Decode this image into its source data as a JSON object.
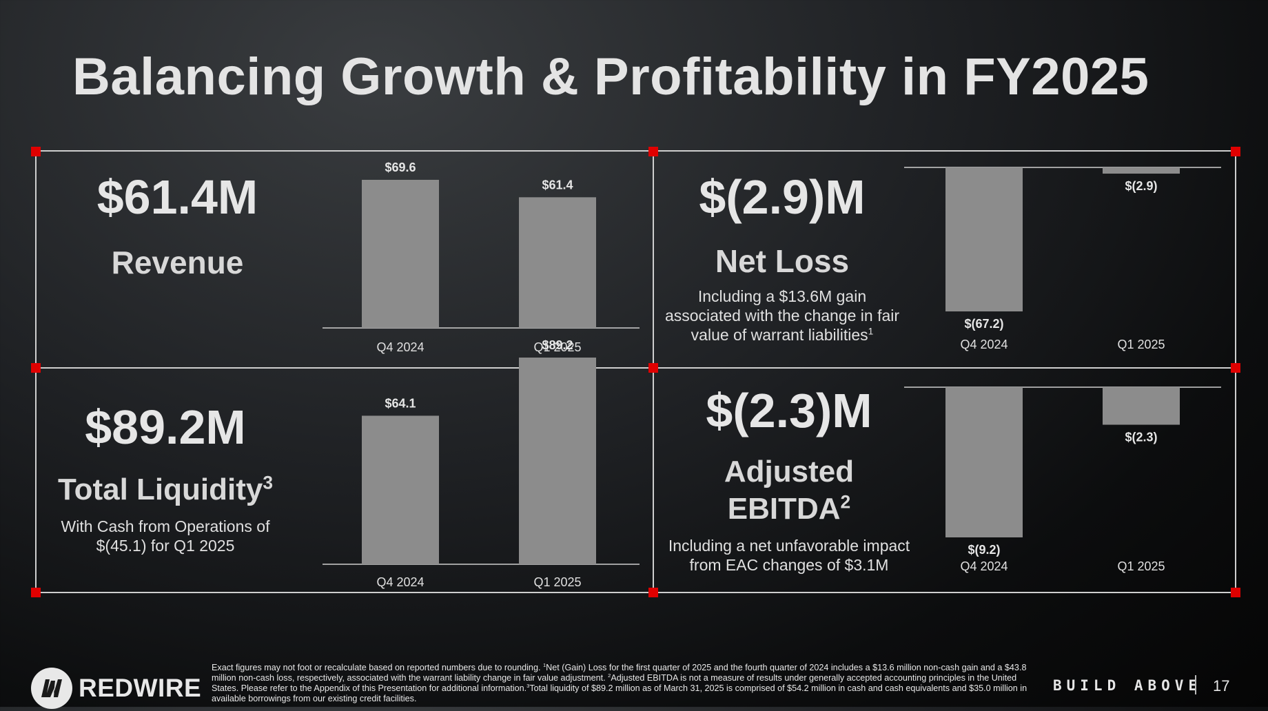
{
  "title": "Balancing Growth & Profitability in FY2025",
  "colors": {
    "accent": "#e00000",
    "bar": "#8c8c8c",
    "frame": "#cfcfcf"
  },
  "panels": {
    "revenue": {
      "value": "$61.4M",
      "label": "Revenue"
    },
    "net_loss": {
      "value": "$(2.9)M",
      "label": "Net Loss",
      "desc": "Including a $13.6M gain associated with the change in fair value of warrant liabilities",
      "desc_sup": "1"
    },
    "liquidity": {
      "value": "$89.2M",
      "label": "Total Liquidity",
      "label_sup": "3",
      "desc": "With Cash from Operations of $(45.1) for Q1 2025"
    },
    "ebitda": {
      "value": "$(2.3)M",
      "label_line1": "Adjusted",
      "label_line2": "EBITDA",
      "label_sup": "2",
      "desc": "Including a net unfavorable impact from EAC changes of $3.1M"
    }
  },
  "chart_data": [
    {
      "id": "revenue",
      "type": "bar",
      "categories": [
        "Q4 2024",
        "Q1 2025"
      ],
      "values": [
        69.6,
        61.4
      ],
      "labels": [
        "$69.6",
        "$61.4"
      ],
      "ylim": [
        0,
        69.6
      ]
    },
    {
      "id": "net_loss",
      "type": "bar",
      "categories": [
        "Q4 2024",
        "Q1 2025"
      ],
      "values": [
        -67.2,
        -2.9
      ],
      "labels": [
        "$(67.2)",
        "$(2.9)"
      ],
      "ylim": [
        -67.2,
        0
      ]
    },
    {
      "id": "liquidity",
      "type": "bar",
      "categories": [
        "Q4 2024",
        "Q1 2025"
      ],
      "values": [
        64.1,
        89.2
      ],
      "labels": [
        "$64.1",
        "$89.2"
      ],
      "ylim": [
        0,
        89.2
      ]
    },
    {
      "id": "ebitda",
      "type": "bar",
      "categories": [
        "Q4 2024",
        "Q1 2025"
      ],
      "values": [
        -9.2,
        -2.3
      ],
      "labels": [
        "$(9.2)",
        "$(2.3)"
      ],
      "ylim": [
        -9.2,
        0
      ]
    }
  ],
  "footer": {
    "footnote_1": "Exact figures may not foot or recalculate based on reported numbers due to rounding. ",
    "footnote_sup1": "1",
    "footnote_2": "Net (Gain) Loss for the first quarter of 2025 and the fourth quarter of 2024 includes a $13.6 million non-cash gain and a $43.8 million non-cash loss, respectively, associated with the warrant liability change in fair value adjustment. ",
    "footnote_sup2": "2",
    "footnote_3": "Adjusted EBITDA is not a measure of results under generally accepted accounting principles in the United States. Please refer to the Appendix of this Presentation for additional information.",
    "footnote_sup3": "3",
    "footnote_4": "Total liquidity of $89.2 million as of March 31, 2025 is comprised of $54.2 million in cash and cash equivalents and $35.0 million in available borrowings from our existing credit facilities.",
    "brand": "REDWIRE",
    "tagline": "BUILD ABOVE",
    "page_number": "17"
  }
}
